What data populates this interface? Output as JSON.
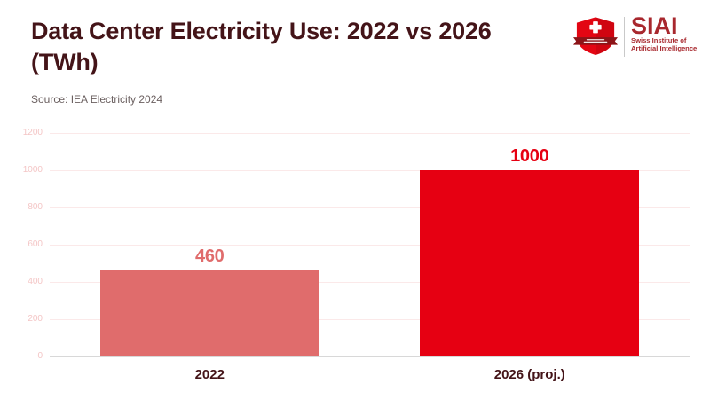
{
  "header": {
    "title": "Data Center Electricity Use: 2022 vs 2026 (TWh)",
    "source": "Source: IEA Electricity 2024"
  },
  "logo": {
    "acronym": "SIAI",
    "subtitle_line1": "Swiss Institute of",
    "subtitle_line2": "Artificial Intelligence",
    "shield_icon": "swiss-shield-cross-ribbon-icon"
  },
  "colors": {
    "title_text": "#441418",
    "source_text": "#6a5f5f",
    "gridline": "#fbe9e9",
    "baseline": "#d8d8d8",
    "axis_tick_text": "#f4c6c6",
    "x_label_text": "#441418",
    "logo_red": "#a8282e",
    "shield_red": "#e30613",
    "ribbon_dark_red": "#8c1418"
  },
  "chart_data": {
    "type": "bar",
    "title": "Data Center Electricity Use: 2022 vs 2026 (TWh)",
    "source": "Source: IEA Electricity 2024",
    "categories": [
      "2022",
      "2026 (proj.)"
    ],
    "values": [
      460,
      1000
    ],
    "value_labels": [
      "460",
      "1000"
    ],
    "bar_colors": [
      "#e06c6c",
      "#e60012"
    ],
    "value_label_colors": [
      "#e06c6c",
      "#e60012"
    ],
    "xlabel": "",
    "ylabel": "",
    "ylim": [
      0,
      1200
    ],
    "yticks": [
      0,
      200,
      400,
      600,
      800,
      1000,
      1200
    ],
    "grid": "horizontal",
    "legend": "none"
  }
}
